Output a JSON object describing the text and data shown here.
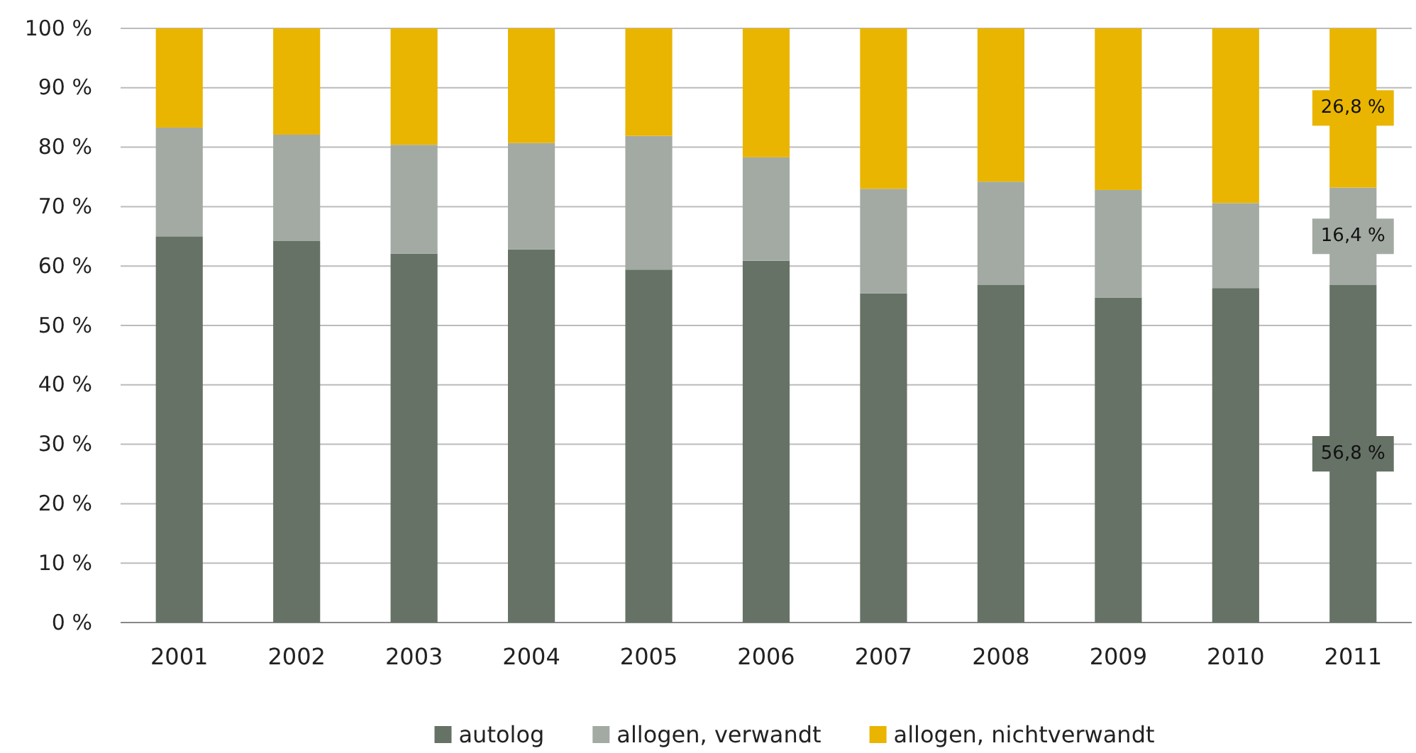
{
  "chart_data": {
    "type": "bar",
    "stacked": true,
    "categories": [
      "2001",
      "2002",
      "2003",
      "2004",
      "2005",
      "2006",
      "2007",
      "2008",
      "2009",
      "2010",
      "2011"
    ],
    "series": [
      {
        "name": "autolog",
        "color": "#667266",
        "values": [
          65,
          64.2,
          62.1,
          62.8,
          59.4,
          60.9,
          55.4,
          56.8,
          54.7,
          56.3,
          56.8
        ],
        "value_labels": [
          null,
          null,
          null,
          null,
          null,
          null,
          null,
          null,
          null,
          null,
          "56,8 %"
        ]
      },
      {
        "name": "allogen, verwandt",
        "color": "#a3aaa3",
        "values": [
          18.3,
          17.9,
          18.3,
          17.9,
          22.5,
          17.4,
          17.6,
          17.4,
          18.1,
          14.3,
          16.4
        ],
        "value_labels": [
          null,
          null,
          null,
          null,
          null,
          null,
          null,
          null,
          null,
          null,
          "16,4 %"
        ]
      },
      {
        "name": "allogen, nichtverwandt",
        "color": "#e9b500",
        "values": [
          16.7,
          17.9,
          19.6,
          19.3,
          18.1,
          21.7,
          27,
          25.8,
          27.2,
          29.4,
          26.8
        ],
        "value_labels": [
          null,
          null,
          null,
          null,
          null,
          null,
          null,
          null,
          null,
          null,
          "26,8 %"
        ]
      }
    ],
    "ylim": [
      0,
      100
    ],
    "yticks": [
      {
        "value": 0,
        "label": "0 %"
      },
      {
        "value": 10,
        "label": "10 %"
      },
      {
        "value": 20,
        "label": "20 %"
      },
      {
        "value": 30,
        "label": "30 %"
      },
      {
        "value": 40,
        "label": "40 %"
      },
      {
        "value": 50,
        "label": "50 %"
      },
      {
        "value": 60,
        "label": "60 %"
      },
      {
        "value": 70,
        "label": "70 %"
      },
      {
        "value": 80,
        "label": "80 %"
      },
      {
        "value": 90,
        "label": "90 %"
      },
      {
        "value": 100,
        "label": "100 %"
      }
    ],
    "grid": "y",
    "legend": "bottom"
  }
}
